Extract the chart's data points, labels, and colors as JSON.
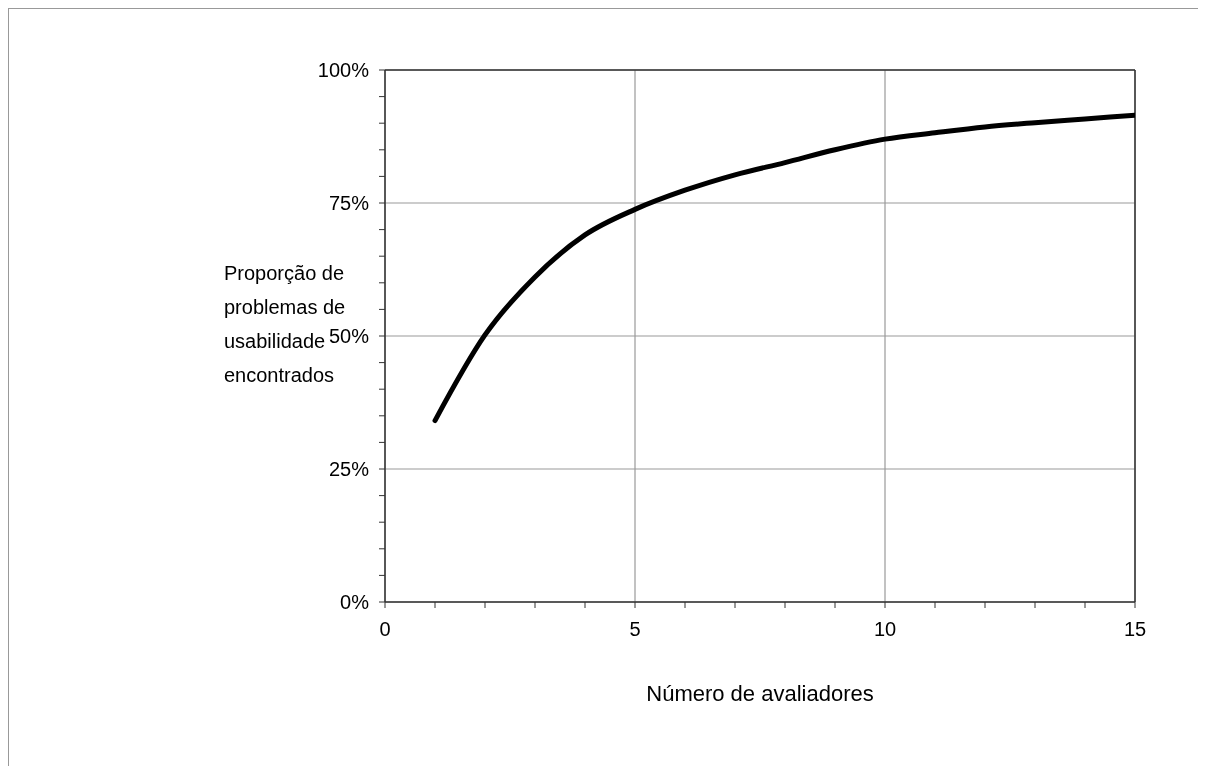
{
  "chart_data": {
    "type": "line",
    "xlabel": "Número de avaliadores",
    "ylabel": "Proporção de problemas de usabilidade encontrados",
    "x": [
      1,
      2,
      3,
      4,
      5,
      6,
      7,
      8,
      9,
      10,
      11,
      12,
      13,
      14,
      15
    ],
    "series": [
      {
        "color": "#000000",
        "values": [
          34.1,
          50.2,
          61.1,
          69.0,
          73.8,
          77.4,
          80.3,
          82.6,
          85.0,
          87.0,
          88.2,
          89.3,
          90.1,
          90.8,
          91.5
        ]
      }
    ],
    "xlim": [
      0,
      15
    ],
    "xticks": [
      0,
      {
        "value": 1,
        "label": null
      },
      {
        "value": 2,
        "label": null
      },
      {
        "value": 3,
        "label": null
      },
      {
        "value": 4,
        "label": null
      },
      5,
      {
        "value": 6,
        "label": null
      },
      {
        "value": 7,
        "label": null
      },
      {
        "value": 8,
        "label": null
      },
      {
        "value": 9,
        "label": null
      },
      10,
      {
        "value": 11,
        "label": null
      },
      {
        "value": 12,
        "label": null
      },
      {
        "value": 13,
        "label": null
      },
      {
        "value": 14,
        "label": null
      },
      15
    ],
    "ylim": [
      0,
      100
    ],
    "yticks": [
      {
        "value": 0,
        "label": "0%"
      },
      {
        "value": 5,
        "label": null
      },
      {
        "value": 10,
        "label": null
      },
      {
        "value": 15,
        "label": null
      },
      {
        "value": 20,
        "label": null
      },
      {
        "value": 25,
        "label": "25%"
      },
      {
        "value": 30,
        "label": null
      },
      {
        "value": 35,
        "label": null
      },
      {
        "value": 40,
        "label": null
      },
      {
        "value": 45,
        "label": null
      },
      {
        "value": 50,
        "label": "50%"
      },
      {
        "value": 55,
        "label": null
      },
      {
        "value": 60,
        "label": null
      },
      {
        "value": 65,
        "label": null
      },
      {
        "value": 70,
        "label": null
      },
      {
        "value": 75,
        "label": "75%"
      },
      {
        "value": 80,
        "label": null
      },
      {
        "value": 85,
        "label": null
      },
      {
        "value": 90,
        "label": null
      },
      {
        "value": 95,
        "label": null
      },
      {
        "value": 100,
        "label": "100%"
      }
    ],
    "grid": true,
    "marker": "none",
    "line_style": "solid"
  }
}
